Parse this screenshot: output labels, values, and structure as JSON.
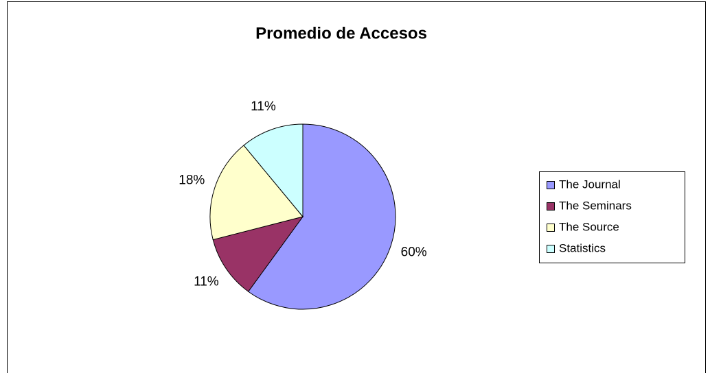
{
  "chart_data": {
    "type": "pie",
    "title": "Promedio de Accesos",
    "categories": [
      "The Journal",
      "The Seminars",
      "The Source",
      "Statistics"
    ],
    "values": [
      60,
      11,
      18,
      11
    ],
    "value_labels": [
      "60%",
      "11%",
      "18%",
      "11%"
    ],
    "colors": [
      "#9999ff",
      "#993366",
      "#ffffcc",
      "#ccffff"
    ],
    "legend": "right"
  }
}
